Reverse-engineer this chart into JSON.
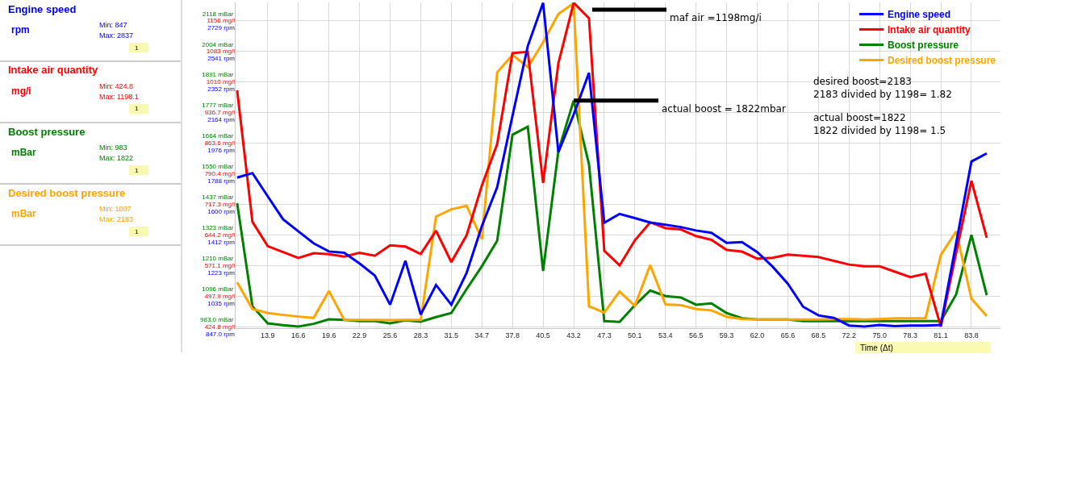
{
  "chart_data": {
    "type": "line",
    "xlabel": "Time (Δt)",
    "categories": [
      null,
      null,
      "13.9",
      null,
      "16.6",
      null,
      "19.6",
      null,
      "22.9",
      null,
      "25.6",
      null,
      "28.3",
      null,
      "31.5",
      null,
      "34.7",
      null,
      "37.8",
      null,
      "40.5",
      null,
      "43.2",
      null,
      "47.3",
      null,
      "50.1",
      null,
      "53.4",
      null,
      "56.5",
      null,
      "59.3",
      null,
      "62.0",
      null,
      "65.6",
      null,
      "68.5",
      null,
      "72.2",
      null,
      "75.0",
      null,
      "78.3",
      null,
      "81.1",
      null,
      "83.8",
      null
    ],
    "series": [
      {
        "name": "Engine speed",
        "color": "#0000ff",
        "axis": "y3",
        "values": [
          1763,
          1791,
          1648,
          1507,
          1433,
          1359,
          1309,
          1301,
          1235,
          1161,
          982,
          1252,
          921,
          1103,
          982,
          1177,
          1466,
          1705,
          2143,
          2572,
          2837,
          1920,
          2151,
          2407,
          1486,
          1540,
          1514,
          1487,
          1473,
          1459,
          1438,
          1424,
          1362,
          1367,
          1305,
          1216,
          1110,
          969,
          916,
          901,
          854,
          847,
          857,
          850,
          854,
          854,
          857,
          1360,
          1862,
          1912
        ]
      },
      {
        "name": "Intake air quantity",
        "color": "#ff0000",
        "axis": "y2",
        "values": [
          989,
          675,
          617,
          603,
          589,
          600,
          598,
          592,
          601,
          594,
          619,
          616,
          598,
          654,
          579,
          643,
          762,
          861,
          1078,
          1081,
          768,
          1054,
          1198,
          1161,
          606,
          571,
          631,
          674,
          660,
          657,
          641,
          632,
          608,
          604,
          587,
          589,
          597,
          594,
          591,
          582,
          573,
          569,
          569,
          556,
          543,
          551,
          425,
          601,
          773,
          637
        ]
      },
      {
        "name": "Boost pressure",
        "color": "#008000",
        "axis": "y",
        "values": [
          1441,
          1058,
          995,
          988,
          983,
          993,
          1010,
          1008,
          1003,
          1003,
          995,
          1006,
          1001,
          1018,
          1033,
          1122,
          1207,
          1302,
          1695,
          1725,
          1189,
          1635,
          1822,
          1585,
          1003,
          1000,
          1062,
          1117,
          1096,
          1091,
          1064,
          1069,
          1033,
          1014,
          1009,
          1009,
          1009,
          1003,
          1003,
          1003,
          1003,
          1003,
          1003,
          1003,
          1003,
          1003,
          1003,
          1102,
          1323,
          1099
        ]
      },
      {
        "name": "Desired boost pressure",
        "color": "#ffa500",
        "axis": "y",
        "values": [
          1147,
          1048,
          1033,
          1026,
          1020,
          1015,
          1115,
          1008,
          1008,
          1008,
          1007,
          1008,
          1008,
          1391,
          1418,
          1431,
          1307,
          1926,
          1991,
          1946,
          2038,
          2143,
          2183,
          1058,
          1035,
          1113,
          1060,
          1211,
          1065,
          1062,
          1048,
          1043,
          1019,
          1011,
          1009,
          1009,
          1009,
          1009,
          1009,
          1011,
          1011,
          1009,
          1011,
          1014,
          1014,
          1014,
          1249,
          1336,
          1086,
          1022
        ]
      }
    ],
    "ylim": [
      977,
      2186
    ],
    "yticks": [
      {
        "value": 983.0,
        "label": "983.0 mBar"
      },
      {
        "value": 1096,
        "label": "1096 mBar"
      },
      {
        "value": 1210,
        "label": "1210 mBar"
      },
      {
        "value": 1323,
        "label": "1323 mBar"
      },
      {
        "value": 1437,
        "label": "1437 mBar"
      },
      {
        "value": 1550,
        "label": "1550 mBar"
      },
      {
        "value": 1664,
        "label": "1664 mBar"
      },
      {
        "value": 1777,
        "label": "1777 mBar"
      },
      {
        "value": 1891,
        "label": "1891 mBar"
      },
      {
        "value": 2004,
        "label": "2004 mBar"
      },
      {
        "value": 2118,
        "label": "2118 mBar"
      }
    ],
    "y2lim": [
      421.2,
      1198.9
    ],
    "y2ticks": [
      {
        "value": 424.8,
        "label": "424.8 mg/l"
      },
      {
        "value": 497.9,
        "label": "497.9 mg/l"
      },
      {
        "value": 571.1,
        "label": "571.1 mg/l"
      },
      {
        "value": 644.2,
        "label": "644.2 mg/l"
      },
      {
        "value": 717.3,
        "label": "717.3 mg/l"
      },
      {
        "value": 790.4,
        "label": "790.4 mg/l"
      },
      {
        "value": 863.6,
        "label": "863.6 mg/l"
      },
      {
        "value": 936.7,
        "label": "936.7 mg/l"
      },
      {
        "value": 1010,
        "label": "1010 mg/l"
      },
      {
        "value": 1083,
        "label": "1083 mg/l"
      },
      {
        "value": 1156,
        "label": "1156 mg/l"
      }
    ],
    "y3lim": [
      837.6,
      2840
    ],
    "y3ticks": [
      {
        "value": 847.0,
        "label": "847.0 rpm"
      },
      {
        "value": 1035,
        "label": "1035 rpm"
      },
      {
        "value": 1223,
        "label": "1223 rpm"
      },
      {
        "value": 1412,
        "label": "1412 rpm"
      },
      {
        "value": 1600,
        "label": "1600 rpm"
      },
      {
        "value": 1788,
        "label": "1788 rpm"
      },
      {
        "value": 1976,
        "label": "1976 rpm"
      },
      {
        "value": 2164,
        "label": "2164 rpm"
      },
      {
        "value": 2352,
        "label": "2352 rpm"
      },
      {
        "value": 2541,
        "label": "2541 rpm"
      },
      {
        "value": 2729,
        "label": "2729 rpm"
      }
    ],
    "grid": true,
    "legend": "top right",
    "annotations": [
      "Engine speed",
      "rpm",
      "Min: 847",
      "Max: 2837",
      "1",
      "Intake air quantity",
      "mg/i",
      "Min: 424.8",
      "Max: 1198.1",
      "1",
      "Boost pressure",
      "mBar",
      "Min: 983",
      "Max: 1822",
      "1",
      "Desired boost pressure",
      "mBar",
      "Min: 1007",
      "Max: 2183",
      "1",
      "maf air =1198mg/i",
      {
        "text": "actual boost = 1822mbar",
        "x": "43.2",
        "y": 1822
      },
      "desired boost=2183\n2183 divided by 1198= 1.82",
      "actual boost=1822\n1822 divided by 1198= 1.5"
    ]
  }
}
